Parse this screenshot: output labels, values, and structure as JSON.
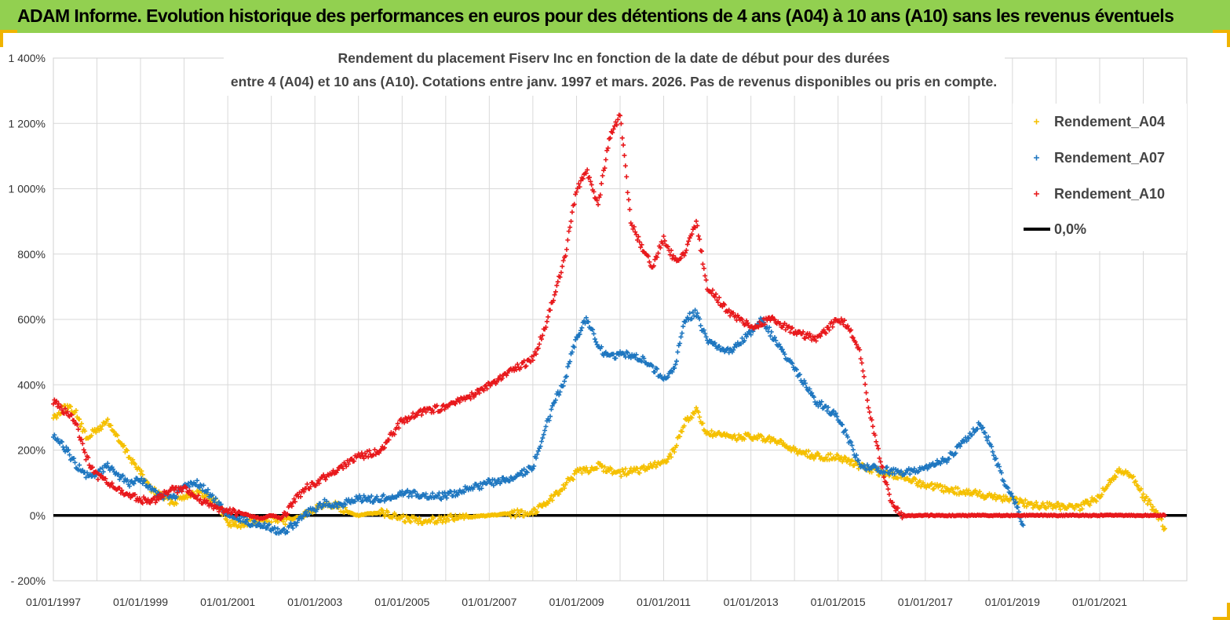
{
  "header": {
    "title": "ADAM Informe. Evolution historique des performances en euros pour des détentions de 4 ans (A04) à 10 ans (A10) sans les revenus éventuels"
  },
  "chart_data": {
    "type": "scatter",
    "title_lines": [
      "Rendement du placement Fiserv Inc en fonction de la date de début pour des durées",
      "entre 4 (A04) et 10 ans (A10).  Cotations entre janv. 1997 et mars. 2026. Pas de revenus disponibles ou pris en compte."
    ],
    "x_range": [
      "1997-01-01",
      "2023-01-01"
    ],
    "x_ticks": [
      "01/01/1997",
      "01/01/1999",
      "01/01/2001",
      "01/01/2003",
      "01/01/2005",
      "01/01/2007",
      "01/01/2009",
      "01/01/2011",
      "01/01/2013",
      "01/01/2015",
      "01/01/2017",
      "01/01/2019",
      "01/01/2021"
    ],
    "y_ticks": [
      -200,
      0,
      200,
      400,
      600,
      800,
      1000,
      1200,
      1400
    ],
    "y_tick_labels": [
      "- 200%",
      "0%",
      "200%",
      "400%",
      "600%",
      "800%",
      "1 000%",
      "1 200%",
      "1 400%"
    ],
    "ylim": [
      -200,
      1400
    ],
    "grid": true,
    "legend_position": "top-right",
    "series": [
      {
        "name": "Rendement_A04",
        "color": "#f5c000",
        "marker": "plus",
        "x": [
          "1997-01-01",
          "1997-04-01",
          "1997-07-01",
          "1997-10-01",
          "1998-01-01",
          "1998-04-01",
          "1998-07-01",
          "1998-10-01",
          "1999-01-01",
          "1999-04-01",
          "1999-07-01",
          "1999-10-01",
          "2000-01-01",
          "2000-04-01",
          "2000-07-01",
          "2000-10-01",
          "2001-01-01",
          "2001-04-01",
          "2001-07-01",
          "2001-10-01",
          "2002-01-01",
          "2002-04-01",
          "2002-07-01",
          "2002-10-01",
          "2003-01-01",
          "2003-04-01",
          "2003-07-01",
          "2003-10-01",
          "2004-01-01",
          "2004-07-01",
          "2005-01-01",
          "2005-07-01",
          "2006-01-01",
          "2006-07-01",
          "2007-01-01",
          "2007-07-01",
          "2008-01-01",
          "2008-07-01",
          "2009-01-01",
          "2009-07-01",
          "2010-01-01",
          "2010-07-01",
          "2011-01-01",
          "2011-04-01",
          "2011-07-01",
          "2011-10-01",
          "2012-01-01",
          "2012-07-01",
          "2013-01-01",
          "2013-07-01",
          "2014-01-01",
          "2014-07-01",
          "2015-01-01",
          "2015-07-01",
          "2016-01-01",
          "2016-07-01",
          "2017-01-01",
          "2017-07-01",
          "2018-01-01",
          "2018-07-01",
          "2019-01-01",
          "2019-07-01",
          "2020-01-01",
          "2020-07-01",
          "2021-01-01",
          "2021-04-01",
          "2021-07-01",
          "2021-10-01",
          "2022-01-01",
          "2022-04-01",
          "2022-07-01"
        ],
        "y": [
          300,
          330,
          320,
          240,
          260,
          290,
          230,
          180,
          130,
          80,
          60,
          40,
          60,
          70,
          60,
          40,
          -20,
          -30,
          -20,
          -20,
          -10,
          -20,
          -10,
          0,
          20,
          40,
          30,
          10,
          0,
          10,
          -10,
          -15,
          -10,
          -5,
          0,
          5,
          10,
          60,
          130,
          150,
          130,
          140,
          160,
          200,
          290,
          320,
          250,
          240,
          240,
          230,
          200,
          180,
          180,
          150,
          130,
          120,
          90,
          80,
          70,
          60,
          50,
          30,
          30,
          20,
          60,
          110,
          140,
          120,
          60,
          20,
          -40
        ]
      },
      {
        "name": "Rendement_A07",
        "color": "#1f77c0",
        "marker": "plus",
        "x": [
          "1997-01-01",
          "1997-04-01",
          "1997-07-01",
          "1997-10-01",
          "1998-01-01",
          "1998-04-01",
          "1998-07-01",
          "1998-10-01",
          "1999-01-01",
          "1999-04-01",
          "1999-07-01",
          "1999-10-01",
          "2000-01-01",
          "2000-04-01",
          "2000-07-01",
          "2000-10-01",
          "2001-01-01",
          "2001-04-01",
          "2001-07-01",
          "2001-10-01",
          "2002-01-01",
          "2002-04-01",
          "2002-07-01",
          "2002-10-01",
          "2003-01-01",
          "2003-04-01",
          "2003-07-01",
          "2003-10-01",
          "2004-01-01",
          "2004-07-01",
          "2005-01-01",
          "2005-07-01",
          "2006-01-01",
          "2006-07-01",
          "2007-01-01",
          "2007-07-01",
          "2008-01-01",
          "2008-04-01",
          "2008-07-01",
          "2008-10-01",
          "2009-01-01",
          "2009-04-01",
          "2009-07-01",
          "2009-10-01",
          "2010-01-01",
          "2010-07-01",
          "2011-01-01",
          "2011-04-01",
          "2011-07-01",
          "2011-10-01",
          "2012-01-01",
          "2012-07-01",
          "2013-01-01",
          "2013-04-01",
          "2013-07-01",
          "2014-01-01",
          "2014-07-01",
          "2015-01-01",
          "2015-04-01",
          "2015-07-01",
          "2016-01-01",
          "2016-07-01",
          "2017-01-01",
          "2017-07-01",
          "2018-01-01",
          "2018-04-01",
          "2018-07-01",
          "2018-10-01",
          "2019-01-01",
          "2019-04-01"
        ],
        "y": [
          240,
          210,
          160,
          120,
          130,
          150,
          120,
          100,
          110,
          80,
          60,
          50,
          90,
          100,
          80,
          40,
          0,
          -10,
          -20,
          -30,
          -40,
          -50,
          -30,
          0,
          20,
          40,
          30,
          40,
          50,
          50,
          70,
          60,
          60,
          80,
          100,
          110,
          150,
          250,
          350,
          420,
          550,
          600,
          520,
          480,
          500,
          480,
          420,
          450,
          600,
          620,
          530,
          500,
          560,
          600,
          550,
          450,
          350,
          300,
          230,
          150,
          140,
          130,
          150,
          170,
          240,
          280,
          220,
          120,
          60,
          -30
        ]
      },
      {
        "name": "Rendement_A10",
        "color": "#e8191c",
        "marker": "plus",
        "x": [
          "1997-01-01",
          "1997-04-01",
          "1997-07-01",
          "1997-10-01",
          "1998-01-01",
          "1998-04-01",
          "1998-07-01",
          "1998-10-01",
          "1999-01-01",
          "1999-04-01",
          "1999-07-01",
          "1999-10-01",
          "2000-01-01",
          "2000-04-01",
          "2000-07-01",
          "2000-10-01",
          "2001-01-01",
          "2001-04-01",
          "2001-07-01",
          "2001-10-01",
          "2002-01-01",
          "2002-04-01",
          "2002-07-01",
          "2002-10-01",
          "2003-01-01",
          "2003-04-01",
          "2003-07-01",
          "2003-10-01",
          "2004-01-01",
          "2004-07-01",
          "2005-01-01",
          "2005-07-01",
          "2006-01-01",
          "2006-07-01",
          "2007-01-01",
          "2007-07-01",
          "2008-01-01",
          "2008-04-01",
          "2008-07-01",
          "2008-10-01",
          "2009-01-01",
          "2009-04-01",
          "2009-07-01",
          "2009-10-01",
          "2010-01-01",
          "2010-04-01",
          "2010-07-01",
          "2010-10-01",
          "2011-01-01",
          "2011-04-01",
          "2011-07-01",
          "2011-10-01",
          "2012-01-01",
          "2012-07-01",
          "2013-01-01",
          "2013-07-01",
          "2014-01-01",
          "2014-07-01",
          "2015-01-01",
          "2015-04-01",
          "2015-07-01",
          "2015-10-01",
          "2016-01-01",
          "2016-04-01",
          "2016-07-01",
          "2017-01-01",
          "2018-01-01",
          "2019-01-01",
          "2020-01-01",
          "2021-01-01",
          "2022-01-01",
          "2022-07-01"
        ],
        "y": [
          350,
          320,
          290,
          180,
          120,
          100,
          80,
          60,
          50,
          40,
          60,
          80,
          80,
          60,
          40,
          20,
          10,
          10,
          0,
          -10,
          0,
          -10,
          40,
          80,
          100,
          120,
          140,
          160,
          180,
          200,
          290,
          320,
          330,
          360,
          400,
          440,
          480,
          560,
          680,
          800,
          1000,
          1050,
          950,
          1150,
          1230,
          900,
          820,
          760,
          850,
          780,
          800,
          900,
          700,
          620,
          580,
          600,
          560,
          540,
          600,
          580,
          500,
          300,
          150,
          30,
          0,
          0,
          0,
          0,
          0,
          0,
          0,
          0
        ]
      },
      {
        "name": "0,0%",
        "color": "#000000",
        "marker": "line",
        "x": [
          "1997-01-01",
          "2023-01-01"
        ],
        "y": [
          0,
          0
        ]
      }
    ]
  }
}
